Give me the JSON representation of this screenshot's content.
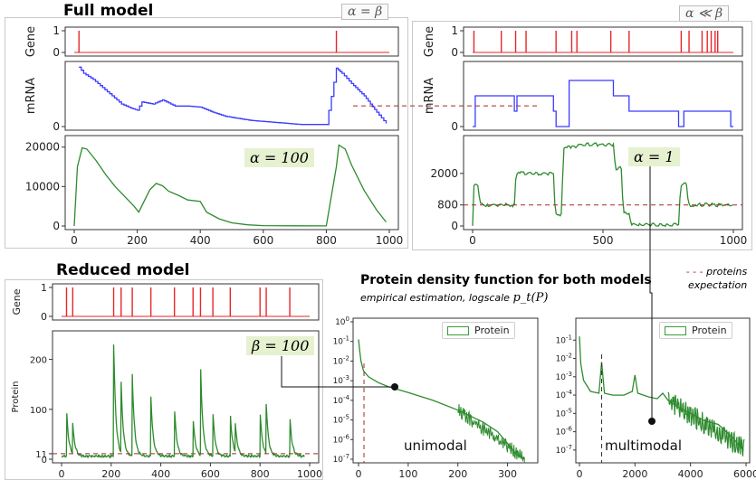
{
  "titles": {
    "full_model": "Full model",
    "reduced_model": "Reduced model",
    "density_title": "Protein density function for both models",
    "density_subtitle": "empirical estimation, logscale",
    "density_symbol": "p_t(P)",
    "proteins_expectation_l1": "proteins",
    "proteins_expectation_l2": "expectation",
    "proteins_expectation_dash": "- - -"
  },
  "annotations": {
    "alpha_eq_beta": "α = β",
    "alpha_ll_beta": "α ≪ β",
    "alpha_100": "α = 100",
    "alpha_1": "α = 1",
    "beta_100": "β = 100",
    "unimodal": "unimodal",
    "multimodal": "multimodal"
  },
  "legend": {
    "protein": "Protein"
  },
  "colors": {
    "gene": "#e8262a",
    "mrna": "#3b3bff",
    "protein": "#2e8b2e",
    "expectation": "#a32a2a",
    "annot_bg": "#e6f1cf"
  },
  "chart_data": [
    {
      "id": "full_gene",
      "type": "line",
      "ylabel": "Gene",
      "xlim": [
        0,
        1000
      ],
      "ylim": [
        0,
        1
      ],
      "yticks": [
        0,
        1
      ],
      "yticklabels": [
        "0",
        "1"
      ],
      "spikes": [
        15,
        832
      ]
    },
    {
      "id": "full_mrna",
      "type": "line",
      "ylabel": "mRNA",
      "xlim": [
        0,
        1000
      ],
      "ylim": [
        0,
        60
      ],
      "yticks": [
        0
      ],
      "yticklabels": [
        "0"
      ],
      "x": [
        15,
        30,
        60,
        90,
        120,
        150,
        180,
        200,
        215,
        250,
        280,
        320,
        360,
        400,
        440,
        480,
        520,
        560,
        600,
        640,
        680,
        720,
        760,
        800,
        832,
        850,
        880,
        920,
        960,
        990
      ],
      "y": [
        58,
        52,
        46,
        38,
        30,
        22,
        18,
        16,
        24,
        22,
        26,
        20,
        20,
        19,
        14,
        10,
        8,
        6,
        5,
        4,
        3,
        2,
        2,
        2,
        57,
        52,
        42,
        30,
        14,
        3
      ]
    },
    {
      "id": "full_protein",
      "type": "line",
      "xlim": [
        0,
        1000
      ],
      "ylim": [
        0,
        22000
      ],
      "yticks": [
        0,
        10000,
        20000
      ],
      "yticklabels": [
        "0",
        "10000",
        "20000"
      ],
      "xticks": [
        0,
        200,
        400,
        600,
        800,
        1000
      ],
      "xticklabels": [
        "0",
        "200",
        "400",
        "600",
        "800",
        "1000"
      ],
      "x": [
        0,
        10,
        25,
        40,
        70,
        100,
        130,
        160,
        190,
        205,
        220,
        240,
        260,
        280,
        300,
        330,
        360,
        400,
        420,
        460,
        500,
        550,
        600,
        700,
        800,
        832,
        840,
        860,
        880,
        920,
        960,
        990
      ],
      "y": [
        0,
        15000,
        19800,
        19500,
        16500,
        13000,
        10000,
        7500,
        5000,
        3500,
        6000,
        9200,
        10800,
        10200,
        8800,
        7800,
        6600,
        6200,
        3500,
        1800,
        800,
        300,
        100,
        50,
        20,
        15000,
        20500,
        19500,
        15500,
        9000,
        4000,
        1000
      ]
    },
    {
      "id": "sparse_gene",
      "type": "line",
      "ylabel": "Gene",
      "xlim": [
        0,
        1000
      ],
      "ylim": [
        0,
        1
      ],
      "yticks": [
        0,
        1
      ],
      "yticklabels": [
        "0",
        "1"
      ],
      "spikes": [
        5,
        110,
        165,
        205,
        320,
        380,
        400,
        530,
        600,
        800,
        830,
        880,
        900,
        915,
        930,
        940
      ]
    },
    {
      "id": "sparse_mrna",
      "type": "line",
      "ylabel": "mRNA",
      "xlim": [
        0,
        1000
      ],
      "ylim": [
        0,
        4
      ],
      "yticks": [
        0
      ],
      "yticklabels": [
        "0"
      ],
      "steps": [
        [
          0,
          0
        ],
        [
          10,
          2
        ],
        [
          160,
          1
        ],
        [
          170,
          2
        ],
        [
          310,
          1
        ],
        [
          320,
          0
        ],
        [
          370,
          3
        ],
        [
          540,
          2
        ],
        [
          600,
          1
        ],
        [
          790,
          0
        ],
        [
          810,
          1
        ],
        [
          990,
          0
        ]
      ]
    },
    {
      "id": "sparse_protein",
      "type": "line",
      "xlim": [
        0,
        1000
      ],
      "ylim": [
        0,
        3300
      ],
      "yticks": [
        0,
        800,
        2000
      ],
      "yticklabels": [
        "0",
        "800",
        "2000"
      ],
      "xticks": [
        0,
        500,
        1000
      ],
      "xticklabels": [
        "0",
        "500",
        "1000"
      ],
      "expectation": 800,
      "steps": [
        [
          0,
          0
        ],
        [
          20,
          1600
        ],
        [
          60,
          800
        ],
        [
          160,
          800
        ],
        [
          185,
          2000
        ],
        [
          310,
          2000
        ],
        [
          340,
          400
        ],
        [
          380,
          3000
        ],
        [
          540,
          3100
        ],
        [
          570,
          2200
        ],
        [
          600,
          500
        ],
        [
          640,
          50
        ],
        [
          790,
          50
        ],
        [
          820,
          1600
        ],
        [
          850,
          800
        ],
        [
          1000,
          800
        ]
      ]
    },
    {
      "id": "reduced_gene",
      "type": "line",
      "ylabel": "Gene",
      "xlim": [
        0,
        1000
      ],
      "ylim": [
        0,
        1
      ],
      "yticks": [
        0,
        1
      ],
      "yticklabels": [
        "0",
        "1"
      ],
      "spikes": [
        20,
        45,
        210,
        240,
        285,
        360,
        455,
        530,
        560,
        610,
        680,
        800,
        825,
        920
      ]
    },
    {
      "id": "reduced_protein",
      "type": "line",
      "ylabel": "Protein",
      "xlim": [
        0,
        1000
      ],
      "ylim": [
        0,
        250
      ],
      "yticks": [
        0,
        11,
        100,
        200
      ],
      "yticklabels": [
        "0",
        "11",
        "100",
        "200"
      ],
      "xticks": [
        0,
        200,
        400,
        600,
        800,
        1000
      ],
      "xticklabels": [
        "0",
        "200",
        "400",
        "600",
        "800",
        "1000"
      ],
      "expectation": 11,
      "peaks": [
        [
          20,
          95
        ],
        [
          45,
          60
        ],
        [
          210,
          225
        ],
        [
          240,
          140
        ],
        [
          285,
          165
        ],
        [
          360,
          120
        ],
        [
          455,
          100
        ],
        [
          530,
          80
        ],
        [
          560,
          190
        ],
        [
          610,
          90
        ],
        [
          680,
          90
        ],
        [
          700,
          60
        ],
        [
          800,
          95
        ],
        [
          825,
          100
        ],
        [
          920,
          82
        ]
      ]
    },
    {
      "id": "density_unimodal",
      "type": "line",
      "scale": "log",
      "xlim": [
        0,
        350
      ],
      "ylim": [
        -7,
        0
      ],
      "yticklabels": [
        "10^0",
        "10^-1",
        "10^-2",
        "10^-3",
        "10^-4",
        "10^-5",
        "10^-6",
        "10^-7"
      ],
      "xticks": [
        0,
        100,
        200,
        300
      ],
      "xticklabels": [
        "0",
        "100",
        "200",
        "300"
      ],
      "expectation": 11,
      "x": [
        0,
        2,
        5,
        10,
        20,
        40,
        60,
        100,
        150,
        200,
        250,
        280,
        300,
        320,
        335
      ],
      "y": [
        -0.9,
        -1.4,
        -2.0,
        -2.5,
        -2.8,
        -3.1,
        -3.3,
        -3.6,
        -4.0,
        -4.5,
        -5.1,
        -5.6,
        -6.2,
        -6.8,
        -7.0
      ]
    },
    {
      "id": "density_multimodal",
      "type": "line",
      "scale": "log",
      "xlim": [
        0,
        6000
      ],
      "ylim": [
        -7.5,
        0
      ],
      "yticklabels": [
        "10^-1",
        "10^-2",
        "10^-3",
        "10^-4",
        "10^-5",
        "10^-6",
        "10^-7"
      ],
      "xticks": [
        0,
        2000,
        4000,
        6000
      ],
      "xticklabels": [
        "0",
        "2000",
        "4000",
        "6000"
      ],
      "expectation": 800,
      "x": [
        0,
        50,
        150,
        400,
        700,
        800,
        900,
        1200,
        1600,
        1900,
        2000,
        2100,
        2500,
        2800,
        3000,
        3200,
        3600,
        4000,
        4500,
        5000,
        5500,
        5900
      ],
      "y": [
        -0.8,
        -2.3,
        -3.2,
        -3.8,
        -3.9,
        -2.2,
        -3.9,
        -4.0,
        -4.0,
        -3.8,
        -2.9,
        -3.9,
        -4.1,
        -4.2,
        -3.9,
        -4.3,
        -4.7,
        -5.0,
        -5.4,
        -5.6,
        -6.3,
        -7.0
      ]
    }
  ]
}
